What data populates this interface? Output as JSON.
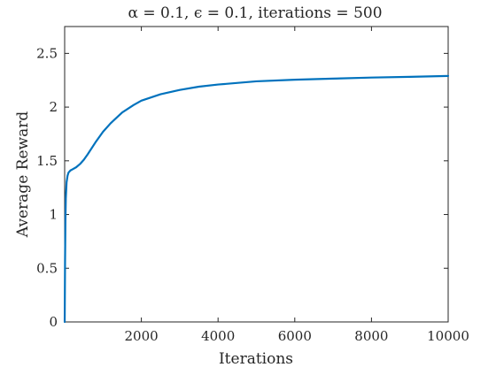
{
  "chart_data": {
    "type": "line",
    "title": "α = 0.1, ϵ = 0.1, iterations = 500",
    "xlabel": "Iterations",
    "ylabel": "Average Reward",
    "xlim": [
      0,
      10000
    ],
    "ylim": [
      0,
      2.75
    ],
    "xticks": [
      2000,
      4000,
      6000,
      8000,
      10000
    ],
    "xtick_labels": [
      "2000",
      "4000",
      "6000",
      "8000",
      "10000"
    ],
    "yticks": [
      0,
      0.5,
      1,
      1.5,
      2,
      2.5
    ],
    "ytick_labels": [
      "0",
      "0.5",
      "1",
      "1.5",
      "2",
      "2.5"
    ],
    "grid": false,
    "series": [
      {
        "color": "#0072bd",
        "x": [
          1,
          5,
          10,
          20,
          30,
          50,
          75,
          100,
          150,
          200,
          300,
          400,
          500,
          600,
          800,
          1000,
          1200,
          1500,
          1800,
          2000,
          2500,
          3000,
          3500,
          4000,
          5000,
          6000,
          7000,
          8000,
          9000,
          10000
        ],
        "y": [
          0.0,
          0.25,
          0.55,
          0.95,
          1.15,
          1.3,
          1.36,
          1.39,
          1.41,
          1.42,
          1.44,
          1.47,
          1.51,
          1.56,
          1.67,
          1.77,
          1.85,
          1.95,
          2.02,
          2.06,
          2.12,
          2.16,
          2.19,
          2.21,
          2.24,
          2.255,
          2.265,
          2.275,
          2.282,
          2.29
        ]
      }
    ]
  }
}
